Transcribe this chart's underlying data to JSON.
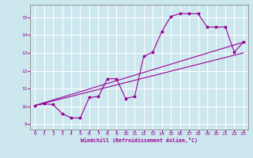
{
  "background_color": "#cce8ee",
  "grid_color": "#ffffff",
  "line_color": "#990099",
  "xlabel": "Windchill (Refroidissement éolien,°C)",
  "xlim": [
    -0.5,
    23.5
  ],
  "ylim": [
    8.7,
    15.7
  ],
  "yticks": [
    9,
    10,
    11,
    12,
    13,
    14,
    15
  ],
  "xticks": [
    0,
    1,
    2,
    3,
    4,
    5,
    6,
    7,
    8,
    9,
    10,
    11,
    12,
    13,
    14,
    15,
    16,
    17,
    18,
    19,
    20,
    21,
    22,
    23
  ],
  "line1_x": [
    0,
    1,
    2,
    3,
    4,
    5,
    6,
    7,
    8,
    9,
    10,
    11,
    12,
    13,
    14,
    15,
    16,
    17,
    18,
    19,
    20,
    21,
    22,
    23
  ],
  "line1_y": [
    10.05,
    10.15,
    10.1,
    9.6,
    9.35,
    9.35,
    10.5,
    10.55,
    11.55,
    11.55,
    10.45,
    10.55,
    12.8,
    13.05,
    14.2,
    15.05,
    15.2,
    15.2,
    15.2,
    14.45,
    14.45,
    14.45,
    13.05,
    13.6
  ],
  "line2_x": [
    0,
    23
  ],
  "line2_y": [
    10.05,
    13.6
  ],
  "line3_x": [
    0,
    23
  ],
  "line3_y": [
    10.05,
    13.0
  ]
}
